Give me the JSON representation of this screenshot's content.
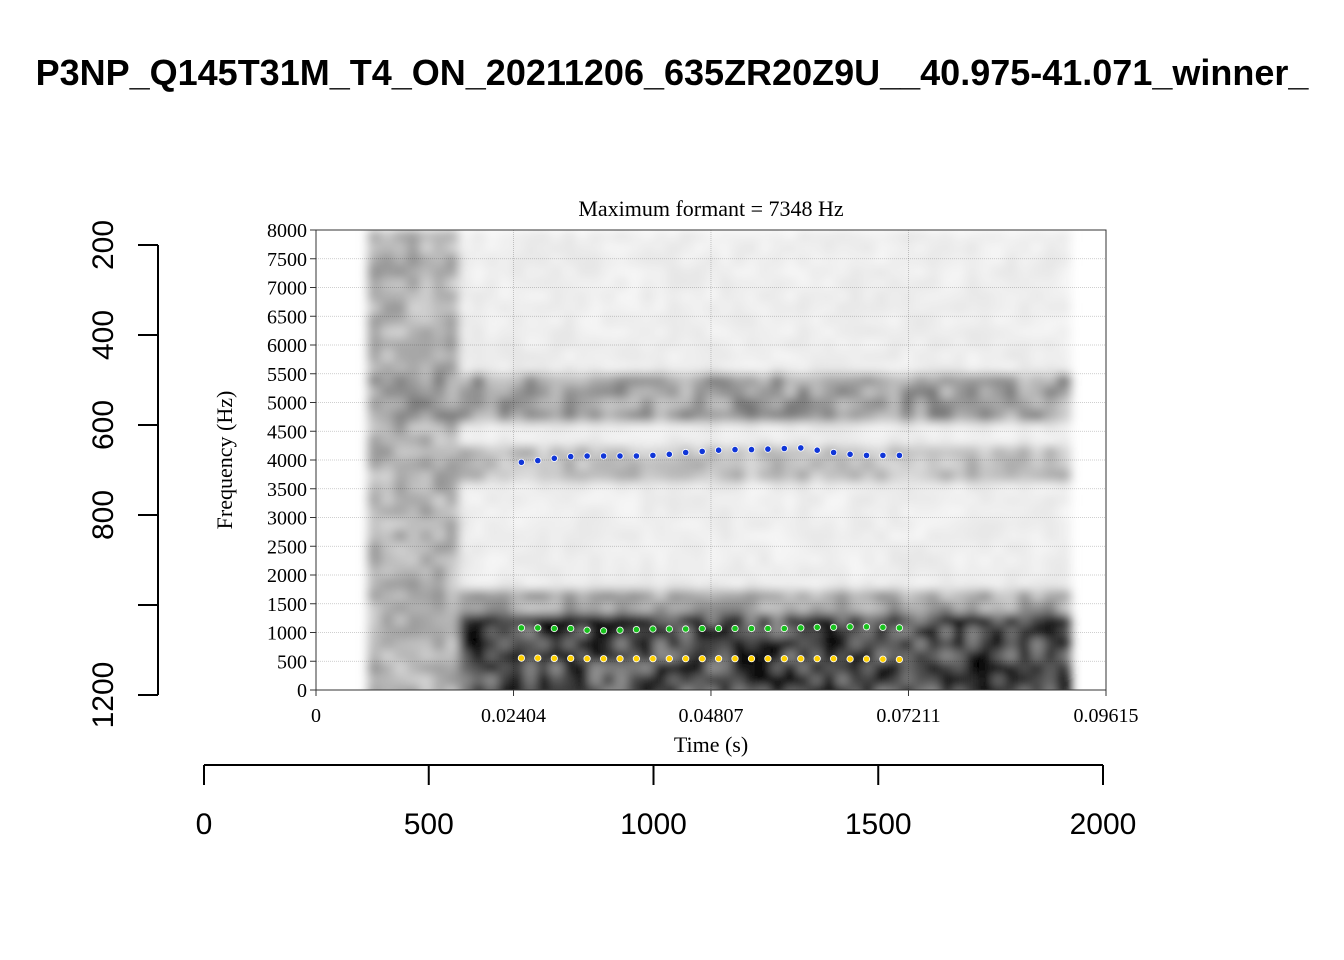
{
  "chart_data": {
    "type": "scatter",
    "title": "P3NP_Q145T31M_T4_ON_20211206_635ZR20Z9U__40.975-41.071_winner_",
    "panel": {
      "title": "Maximum formant = 7348 Hz",
      "xlabel": "Time (s)",
      "ylabel": "Frequency (Hz)",
      "xlim": [
        0,
        0.09615
      ],
      "ylim": [
        0,
        8000
      ],
      "x_ticks": [
        "0",
        "0.02404",
        "0.04807",
        "0.07211",
        "0.09615"
      ],
      "y_ticks": [
        "0",
        "500",
        "1000",
        "1500",
        "2000",
        "2500",
        "3000",
        "3500",
        "4000",
        "4500",
        "5000",
        "5500",
        "6000",
        "6500",
        "7000",
        "7500",
        "8000"
      ],
      "grid": true,
      "background": "spectrogram",
      "spectrogram_time_range": [
        0.0063,
        0.0902
      ]
    },
    "outer_axes": {
      "left": {
        "ticks": [
          "200",
          "400",
          "600",
          "800",
          "1200"
        ],
        "tick_positions": [
          200,
          400,
          600,
          800,
          1000,
          1200
        ],
        "range": [
          200,
          1200
        ]
      },
      "bottom": {
        "ticks": [
          "0",
          "500",
          "1000",
          "1500",
          "2000"
        ],
        "range": [
          0,
          2000
        ]
      }
    },
    "series": [
      {
        "color": "#ffd000",
        "x": [
          0.025,
          0.027,
          0.029,
          0.031,
          0.033,
          0.035,
          0.037,
          0.039,
          0.041,
          0.043,
          0.045,
          0.047,
          0.049,
          0.051,
          0.053,
          0.055,
          0.057,
          0.059,
          0.061,
          0.063,
          0.065,
          0.067,
          0.069,
          0.071
        ],
        "values": [
          555,
          555,
          550,
          550,
          545,
          545,
          545,
          545,
          545,
          545,
          545,
          545,
          545,
          545,
          545,
          545,
          545,
          545,
          545,
          545,
          540,
          540,
          535,
          530
        ]
      },
      {
        "color": "#19c21e",
        "x": [
          0.025,
          0.027,
          0.029,
          0.031,
          0.033,
          0.035,
          0.037,
          0.039,
          0.041,
          0.043,
          0.045,
          0.047,
          0.049,
          0.051,
          0.053,
          0.055,
          0.057,
          0.059,
          0.061,
          0.063,
          0.065,
          0.067,
          0.069,
          0.071
        ],
        "values": [
          1080,
          1080,
          1070,
          1070,
          1040,
          1030,
          1040,
          1050,
          1060,
          1060,
          1060,
          1070,
          1070,
          1070,
          1070,
          1070,
          1070,
          1080,
          1090,
          1090,
          1100,
          1100,
          1090,
          1080
        ]
      },
      {
        "color": "#1036d8",
        "x": [
          0.025,
          0.027,
          0.029,
          0.031,
          0.033,
          0.035,
          0.037,
          0.039,
          0.041,
          0.043,
          0.045,
          0.047,
          0.049,
          0.051,
          0.053,
          0.055,
          0.057,
          0.059,
          0.061,
          0.063,
          0.065,
          0.067,
          0.069,
          0.071
        ],
        "values": [
          3960,
          3990,
          4030,
          4060,
          4070,
          4070,
          4070,
          4070,
          4080,
          4100,
          4130,
          4150,
          4170,
          4180,
          4180,
          4190,
          4200,
          4210,
          4170,
          4130,
          4100,
          4080,
          4080,
          4080
        ]
      }
    ]
  }
}
